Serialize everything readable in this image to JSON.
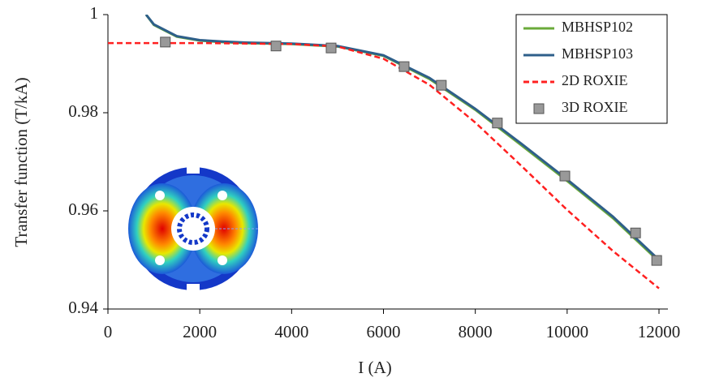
{
  "chart_data": {
    "type": "line",
    "xlabel": "I (A)",
    "ylabel": "Transfer  function  (T/kA)",
    "xlim": [
      0,
      12000
    ],
    "xticks": [
      0,
      2000,
      4000,
      6000,
      8000,
      10000,
      12000
    ],
    "ylim": [
      0.94,
      1
    ],
    "yticks": [
      0.94,
      0.96,
      0.98,
      1
    ],
    "grid": false,
    "legend": "upper right",
    "series": [
      {
        "name": "MBHSP102",
        "color": "#6aaa3a",
        "style": "solid",
        "x": [
          830,
          1000,
          1500,
          2000,
          2500,
          3000,
          4000,
          5000,
          6000,
          7000,
          8000,
          9000,
          10000,
          11000,
          12000
        ],
        "values": [
          1.0,
          0.9979,
          0.9955,
          0.9947,
          0.9944,
          0.9942,
          0.994,
          0.9935,
          0.9916,
          0.9869,
          0.9806,
          0.9734,
          0.9661,
          0.9585,
          0.9497
        ]
      },
      {
        "name": "MBHSP103",
        "color": "#2e5f8a",
        "style": "solid",
        "x": [
          830,
          1000,
          1500,
          2000,
          2500,
          3000,
          4000,
          5000,
          6000,
          7000,
          8000,
          9000,
          10000,
          11000,
          12000
        ],
        "values": [
          1.0,
          0.998,
          0.9956,
          0.9948,
          0.9945,
          0.9943,
          0.9941,
          0.9936,
          0.9917,
          0.9871,
          0.9808,
          0.9737,
          0.9664,
          0.9588,
          0.95
        ]
      },
      {
        "name": "2D ROXIE",
        "color": "#ff2020",
        "style": "dashed",
        "x": [
          0,
          2000,
          4000,
          5000,
          6000,
          7000,
          8000,
          9000,
          10000,
          11000,
          12000
        ],
        "values": [
          0.9942,
          0.9942,
          0.994,
          0.9935,
          0.991,
          0.9857,
          0.978,
          0.9692,
          0.9602,
          0.9518,
          0.9442
        ]
      },
      {
        "name": "3D ROXIE",
        "color": "#999999",
        "style": "marker",
        "x": [
          1250,
          3660,
          4860,
          6450,
          7260,
          8480,
          9950,
          11490,
          11950
        ],
        "values": [
          0.9944,
          0.9936,
          0.9932,
          0.9894,
          0.9856,
          0.9779,
          0.9671,
          0.9555,
          0.9499
        ]
      }
    ]
  }
}
